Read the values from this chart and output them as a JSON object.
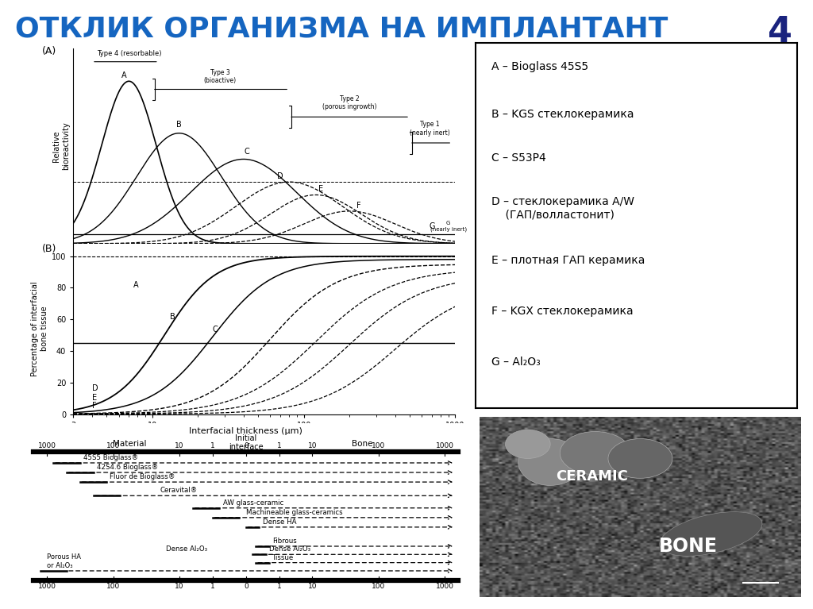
{
  "title": "ОТКЛИК ОРГАНИЗМА НА ИМПЛАНТАНТ",
  "slide_number": "4",
  "title_color": "#1565C0",
  "title_fontsize": 26,
  "background_color": "#ffffff",
  "legend_items": [
    "A – Bioglass 45S5",
    "B – KGS стеклокерамика",
    "C – S53P4",
    "D – стеклокерамика A/W\n    (ГАП/волластонит)",
    "E – плотная ГАП керамика",
    "F – KGX стеклокерамика",
    "G – Al₂O₃"
  ]
}
